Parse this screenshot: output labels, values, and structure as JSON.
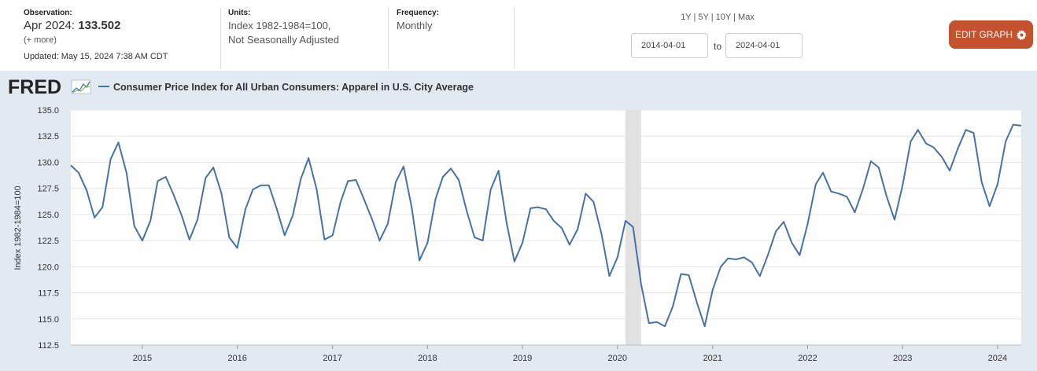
{
  "header": {
    "observation_label": "Observation:",
    "observation_date": "Apr 2024:",
    "observation_value": "133.502",
    "more_link": "(+ more)",
    "updated": "Updated: May 15, 2024 7:38 AM CDT",
    "units_label": "Units:",
    "units_line1": "Index 1982-1984=100,",
    "units_line2": "Not Seasonally Adjusted",
    "frequency_label": "Frequency:",
    "frequency_value": "Monthly",
    "range_1y": "1Y",
    "range_5y": "5Y",
    "range_10y": "10Y",
    "range_max": "Max",
    "range_sep": "|",
    "start_date": "2014-04-01",
    "to_label": "to",
    "end_date": "2024-04-01",
    "edit_button": "EDIT GRAPH"
  },
  "logo_text": "FRED",
  "colors": {
    "line": "#4572a7",
    "edit_button": "#c4522e",
    "recession": "#e1e1e1",
    "chart_bg": "#e1e9f1"
  },
  "icons": [
    "gear-icon",
    "fred-logo-chart-icon"
  ],
  "chart_data": {
    "type": "line",
    "title": "Consumer Price Index for All Urban Consumers: Apparel in U.S. City Average",
    "xlabel": "",
    "ylabel": "Index 1982-1984=100",
    "ylim": [
      112.5,
      135.0
    ],
    "xlim": [
      "2014-04-01",
      "2024-04-01"
    ],
    "grid": true,
    "legend": "top-left",
    "y_ticks": [
      "112.5",
      "115.0",
      "117.5",
      "120.0",
      "122.5",
      "125.0",
      "127.5",
      "130.0",
      "132.5",
      "135.0"
    ],
    "x_ticks": [
      "2015",
      "2016",
      "2017",
      "2018",
      "2019",
      "2020",
      "2021",
      "2022",
      "2023",
      "2024"
    ],
    "recession": {
      "start": "2020-02-01",
      "end": "2020-04-01"
    },
    "series": [
      {
        "name": "Consumer Price Index for All Urban Consumers: Apparel in U.S. City Average",
        "start": "2014-04-01",
        "values": [
          129.7,
          129.0,
          127.3,
          124.7,
          125.7,
          130.3,
          131.9,
          129.0,
          123.9,
          122.5,
          124.4,
          128.2,
          128.6,
          126.9,
          124.9,
          122.6,
          124.5,
          128.5,
          129.5,
          127.0,
          122.8,
          121.8,
          125.5,
          127.4,
          127.8,
          127.8,
          125.5,
          123.0,
          124.9,
          128.4,
          130.4,
          127.4,
          122.6,
          123.0,
          126.2,
          128.2,
          128.3,
          126.5,
          124.6,
          122.5,
          124.1,
          128.1,
          129.6,
          125.7,
          120.6,
          122.3,
          126.5,
          128.6,
          129.4,
          128.3,
          125.3,
          122.8,
          122.5,
          127.4,
          129.2,
          124.2,
          120.5,
          122.3,
          125.6,
          125.7,
          125.5,
          124.4,
          123.7,
          122.1,
          123.6,
          127.0,
          126.2,
          123.1,
          119.1,
          120.9,
          124.4,
          123.8,
          118.3,
          114.6,
          114.7,
          114.3,
          116.2,
          119.3,
          119.2,
          116.6,
          114.3,
          117.8,
          120.0,
          120.8,
          120.7,
          120.9,
          120.4,
          119.1,
          121.1,
          123.4,
          124.3,
          122.3,
          121.1,
          124.1,
          127.9,
          129.0,
          127.2,
          127.0,
          126.7,
          125.2,
          127.4,
          130.1,
          129.5,
          126.7,
          124.5,
          127.8,
          132.0,
          133.1,
          131.8,
          131.4,
          130.5,
          129.2,
          131.3,
          133.1,
          132.8,
          128.1,
          125.8,
          127.9,
          132.0,
          133.6,
          133.5
        ]
      }
    ]
  }
}
